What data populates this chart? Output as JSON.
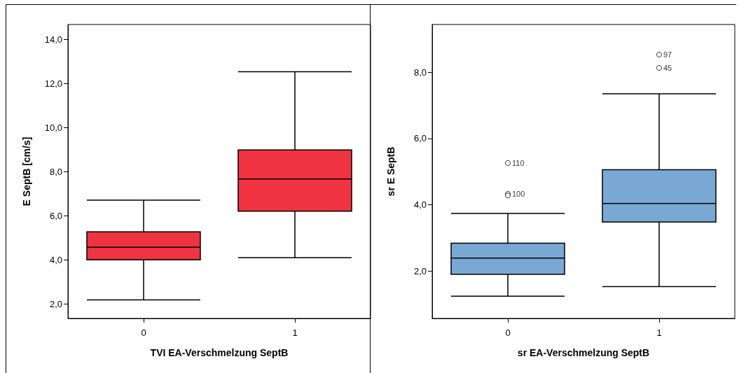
{
  "chart_data": [
    {
      "type": "box",
      "xlabel": "TVI EA-Verschmelzung SeptB",
      "ylabel": "E SeptB [cm/s]",
      "categories": [
        "0",
        "1"
      ],
      "ylim": [
        1.34,
        14.67
      ],
      "yticks": [
        {
          "value": 2,
          "label": "2,0"
        },
        {
          "value": 4,
          "label": "4,0"
        },
        {
          "value": 6,
          "label": "6,0"
        },
        {
          "value": 8,
          "label": "8,0"
        },
        {
          "value": 10,
          "label": "10,0"
        },
        {
          "value": 12,
          "label": "12,0"
        },
        {
          "value": 14,
          "label": "14,0"
        }
      ],
      "series": [
        {
          "color": "#ef3340",
          "boxes": [
            {
              "low": 2.18,
              "q1": 4.0,
              "median": 4.57,
              "q3": 5.27,
              "high": 6.7
            },
            {
              "low": 4.09,
              "q1": 6.2,
              "median": 7.66,
              "q3": 8.98,
              "high": 12.53
            }
          ]
        }
      ]
    },
    {
      "type": "box",
      "xlabel": "sr EA-Verschmelzung SeptB",
      "ylabel": "sr E SeptB",
      "categories": [
        "0",
        "1"
      ],
      "ylim": [
        0.57,
        9.44
      ],
      "yticks": [
        {
          "value": 2,
          "label": "2,0"
        },
        {
          "value": 4,
          "label": "4,0"
        },
        {
          "value": 6,
          "label": "6,0"
        },
        {
          "value": 8,
          "label": "8,0"
        }
      ],
      "series": [
        {
          "color": "#7aa8d4",
          "boxes": [
            {
              "low": 1.24,
              "q1": 1.9,
              "median": 2.39,
              "q3": 2.84,
              "high": 3.74,
              "outliers": [
                5.26,
                4.33,
                4.28
              ]
            },
            {
              "low": 1.53,
              "q1": 3.48,
              "median": 4.04,
              "q3": 5.06,
              "high": 7.35,
              "outliers": [
                8.53,
                8.13
              ]
            }
          ]
        }
      ],
      "annotations": [
        "110",
        "100",
        "97",
        "45"
      ]
    }
  ]
}
